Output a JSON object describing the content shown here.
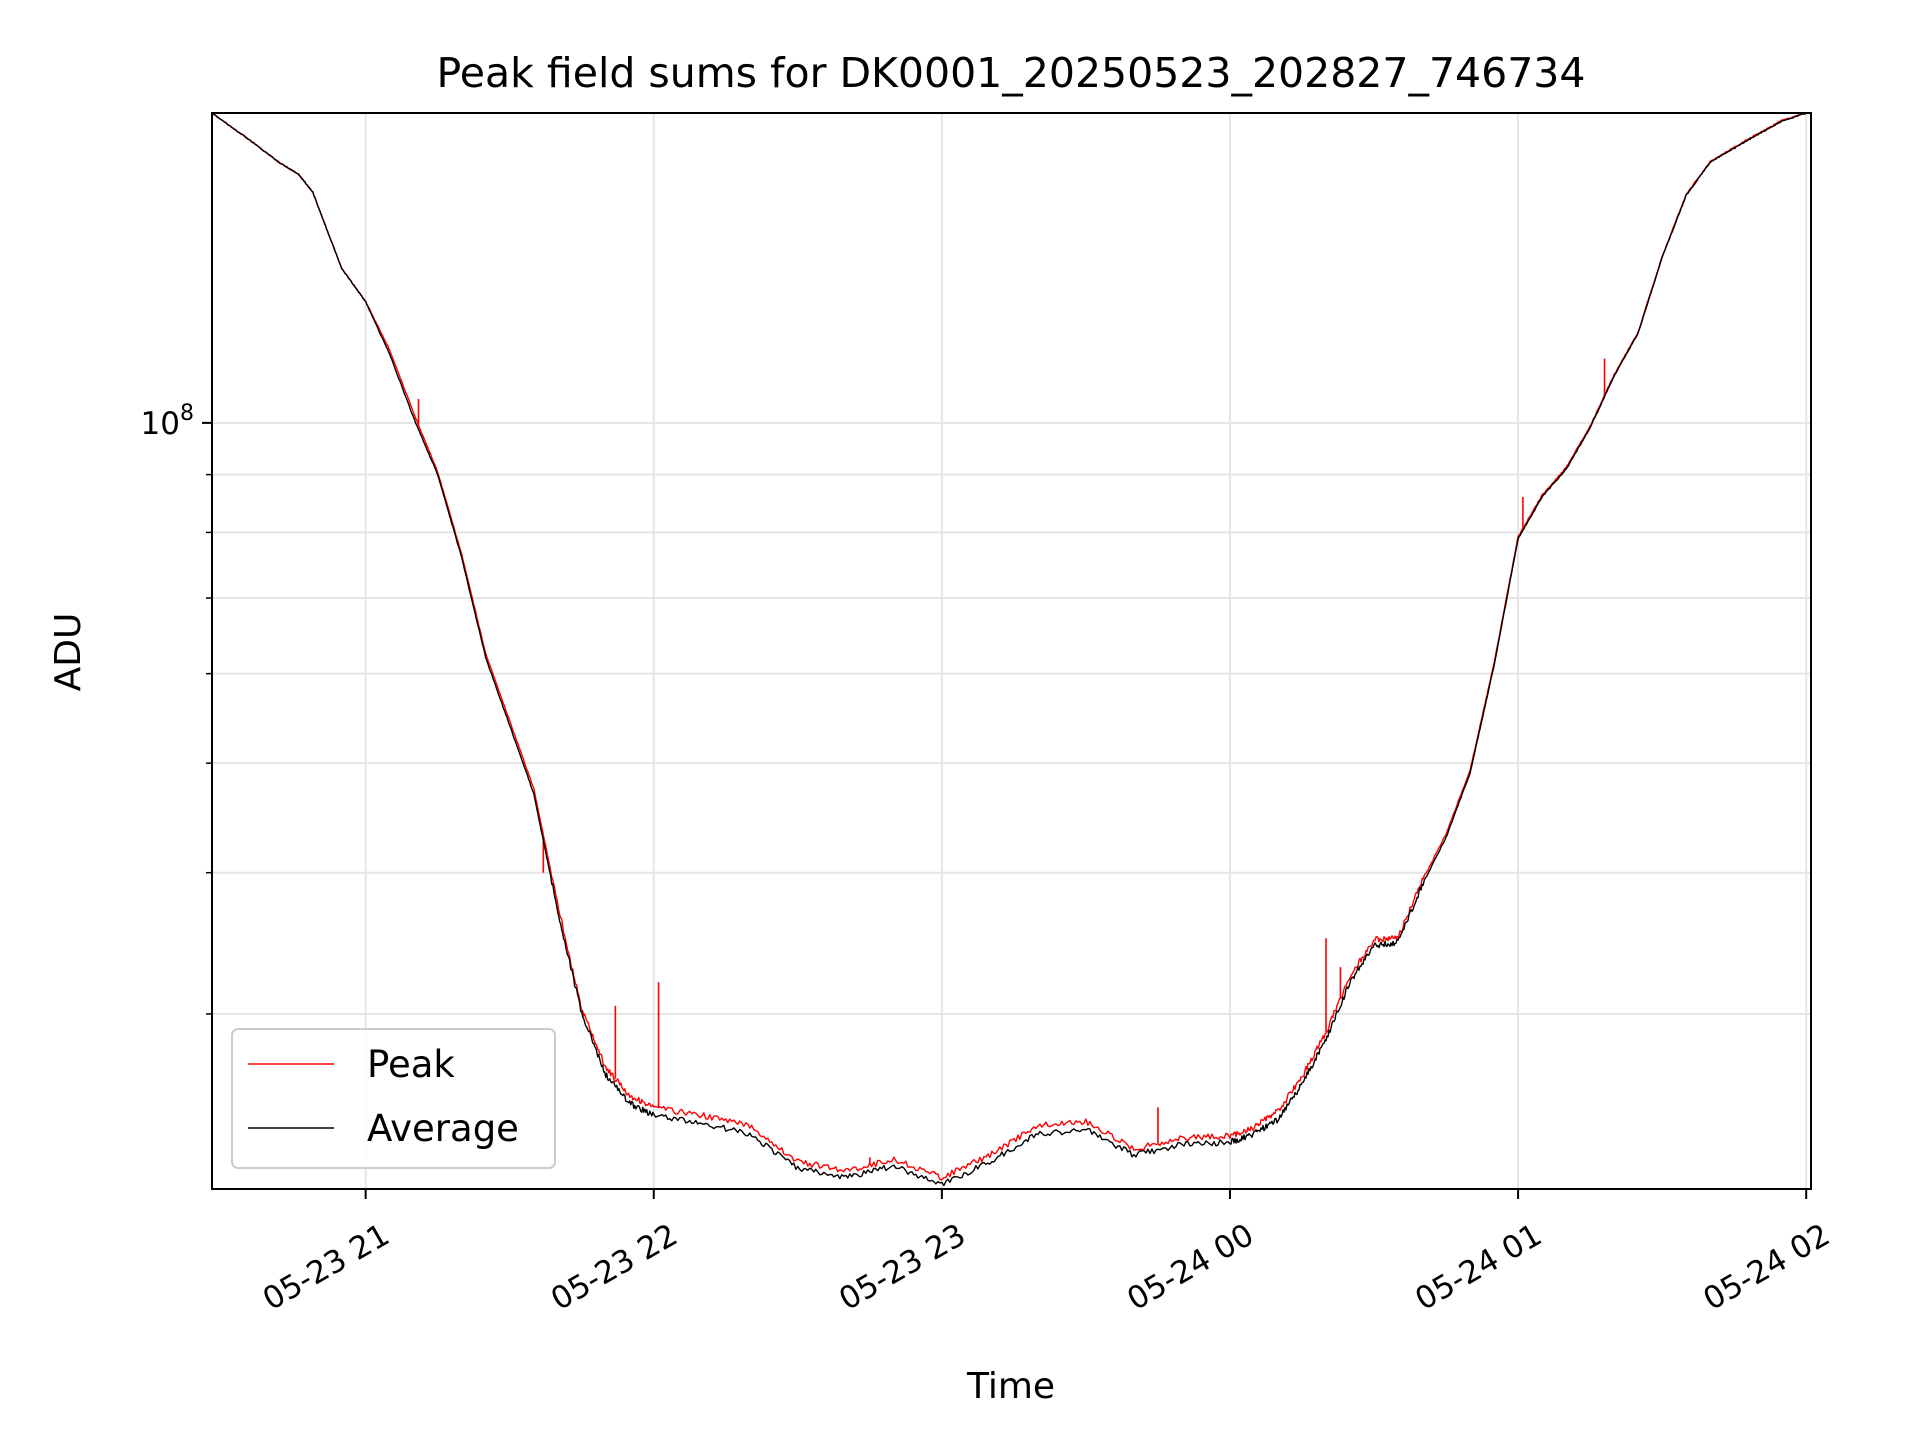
{
  "chart_data": {
    "type": "line",
    "title": "Peak field sums for DK0001_20250523_202827_746734",
    "xlabel": "Time",
    "ylabel": "ADU",
    "y_scale": "log",
    "ylim": [
      21000000,
      188000000
    ],
    "xlim": [
      "2025-05-23 20:28",
      "2025-05-24 02:01"
    ],
    "x_ticks": [
      "05-23 21",
      "05-23 22",
      "05-23 23",
      "05-24 00",
      "05-24 01",
      "05-24 02"
    ],
    "y_ticks": [
      {
        "value": 100000000,
        "base": "10",
        "exp": "8"
      }
    ],
    "grid": true,
    "legend_position": "lower-left",
    "colors": {
      "Peak": "#ff0000",
      "Average": "#000000"
    },
    "series": [
      {
        "name": "Average",
        "x": [
          "2025-05-23 20:28",
          "2025-05-23 20:35",
          "2025-05-23 20:42",
          "2025-05-23 20:46",
          "2025-05-23 20:49",
          "2025-05-23 20:52",
          "2025-05-23 20:55",
          "2025-05-23 21:00",
          "2025-05-23 21:05",
          "2025-05-23 21:10",
          "2025-05-23 21:15",
          "2025-05-23 21:20",
          "2025-05-23 21:25",
          "2025-05-23 21:30",
          "2025-05-23 21:35",
          "2025-05-23 21:40",
          "2025-05-23 21:45",
          "2025-05-23 21:50",
          "2025-05-23 21:55",
          "2025-05-23 22:00",
          "2025-05-23 22:10",
          "2025-05-23 22:20",
          "2025-05-23 22:30",
          "2025-05-23 22:40",
          "2025-05-23 22:50",
          "2025-05-23 23:00",
          "2025-05-23 23:10",
          "2025-05-23 23:20",
          "2025-05-23 23:30",
          "2025-05-23 23:40",
          "2025-05-23 23:50",
          "2025-05-24 00:00",
          "2025-05-24 00:05",
          "2025-05-24 00:10",
          "2025-05-24 00:15",
          "2025-05-24 00:20",
          "2025-05-24 00:25",
          "2025-05-24 00:30",
          "2025-05-24 00:35",
          "2025-05-24 00:40",
          "2025-05-24 00:45",
          "2025-05-24 00:50",
          "2025-05-24 00:55",
          "2025-05-24 01:00",
          "2025-05-24 01:05",
          "2025-05-24 01:10",
          "2025-05-24 01:15",
          "2025-05-24 01:20",
          "2025-05-24 01:25",
          "2025-05-24 01:30",
          "2025-05-24 01:35",
          "2025-05-24 01:40",
          "2025-05-24 01:45",
          "2025-05-24 01:50",
          "2025-05-24 01:55",
          "2025-05-24 02:00"
        ],
        "y": [
          188000000,
          179000000,
          170000000,
          166000000,
          160000000,
          148000000,
          137000000,
          128000000,
          115000000,
          101000000,
          90000000,
          76000000,
          62000000,
          54000000,
          47000000,
          37000000,
          30000000,
          26500000,
          25000000,
          24400000,
          24000000,
          23500000,
          21900000,
          21500000,
          22000000,
          21200000,
          22200000,
          23500000,
          23700000,
          22500000,
          23000000,
          23100000,
          23500000,
          24200000,
          26000000,
          28500000,
          32000000,
          34500000,
          34700000,
          39000000,
          43000000,
          49000000,
          61000000,
          79000000,
          86000000,
          91000000,
          99000000,
          110000000,
          120000000,
          140000000,
          159000000,
          170000000,
          175000000,
          180000000,
          185000000,
          188000000
        ]
      },
      {
        "name": "Peak",
        "x": [
          "2025-05-23 20:28",
          "2025-05-23 20:35",
          "2025-05-23 20:42",
          "2025-05-23 20:46",
          "2025-05-23 20:49",
          "2025-05-23 20:52",
          "2025-05-23 20:55",
          "2025-05-23 21:00",
          "2025-05-23 21:05",
          "2025-05-23 21:10",
          "2025-05-23 21:15",
          "2025-05-23 21:20",
          "2025-05-23 21:25",
          "2025-05-23 21:30",
          "2025-05-23 21:35",
          "2025-05-23 21:40",
          "2025-05-23 21:45",
          "2025-05-23 21:50",
          "2025-05-23 21:55",
          "2025-05-23 22:00",
          "2025-05-23 22:10",
          "2025-05-23 22:20",
          "2025-05-23 22:30",
          "2025-05-23 22:40",
          "2025-05-23 22:50",
          "2025-05-23 23:00",
          "2025-05-23 23:10",
          "2025-05-23 23:20",
          "2025-05-23 23:30",
          "2025-05-23 23:40",
          "2025-05-23 23:50",
          "2025-05-24 00:00",
          "2025-05-24 00:05",
          "2025-05-24 00:10",
          "2025-05-24 00:15",
          "2025-05-24 00:20",
          "2025-05-24 00:25",
          "2025-05-24 00:30",
          "2025-05-24 00:35",
          "2025-05-24 00:40",
          "2025-05-24 00:45",
          "2025-05-24 00:50",
          "2025-05-24 00:55",
          "2025-05-24 01:00",
          "2025-05-24 01:05",
          "2025-05-24 01:10",
          "2025-05-24 01:15",
          "2025-05-24 01:20",
          "2025-05-24 01:25",
          "2025-05-24 01:30",
          "2025-05-24 01:35",
          "2025-05-24 01:40",
          "2025-05-24 01:45",
          "2025-05-24 01:50",
          "2025-05-24 01:55",
          "2025-05-24 02:00"
        ],
        "y": [
          188000000,
          179000000,
          170000000,
          166000000,
          160000000,
          148000000,
          137000000,
          128000000,
          116000000,
          102000000,
          90500000,
          76500000,
          62500000,
          54500000,
          47500000,
          37500000,
          30300000,
          26900000,
          25400000,
          24800000,
          24400000,
          23900000,
          22200000,
          21800000,
          22300000,
          21500000,
          22500000,
          23900000,
          24100000,
          22800000,
          23300000,
          23400000,
          23800000,
          24600000,
          26400000,
          28900000,
          32400000,
          34900000,
          35000000,
          39300000,
          43300000,
          49300000,
          61300000,
          79300000,
          86300000,
          91300000,
          99300000,
          110300000,
          120300000,
          140300000,
          159300000,
          170300000,
          175300000,
          180300000,
          185300000,
          188000000
        ],
        "spikes": [
          {
            "x": "2025-05-23 21:11",
            "y": 105000000
          },
          {
            "x": "2025-05-23 21:37",
            "y": 40000000
          },
          {
            "x": "2025-05-23 21:52",
            "y": 30500000
          },
          {
            "x": "2025-05-23 22:01",
            "y": 32000000
          },
          {
            "x": "2025-05-23 22:45",
            "y": 22400000
          },
          {
            "x": "2025-05-23 23:45",
            "y": 24800000
          },
          {
            "x": "2025-05-24 00:20",
            "y": 35000000
          },
          {
            "x": "2025-05-24 00:23",
            "y": 33000000
          },
          {
            "x": "2025-05-24 01:01",
            "y": 86000000
          },
          {
            "x": "2025-05-24 01:18",
            "y": 114000000
          }
        ]
      }
    ]
  }
}
